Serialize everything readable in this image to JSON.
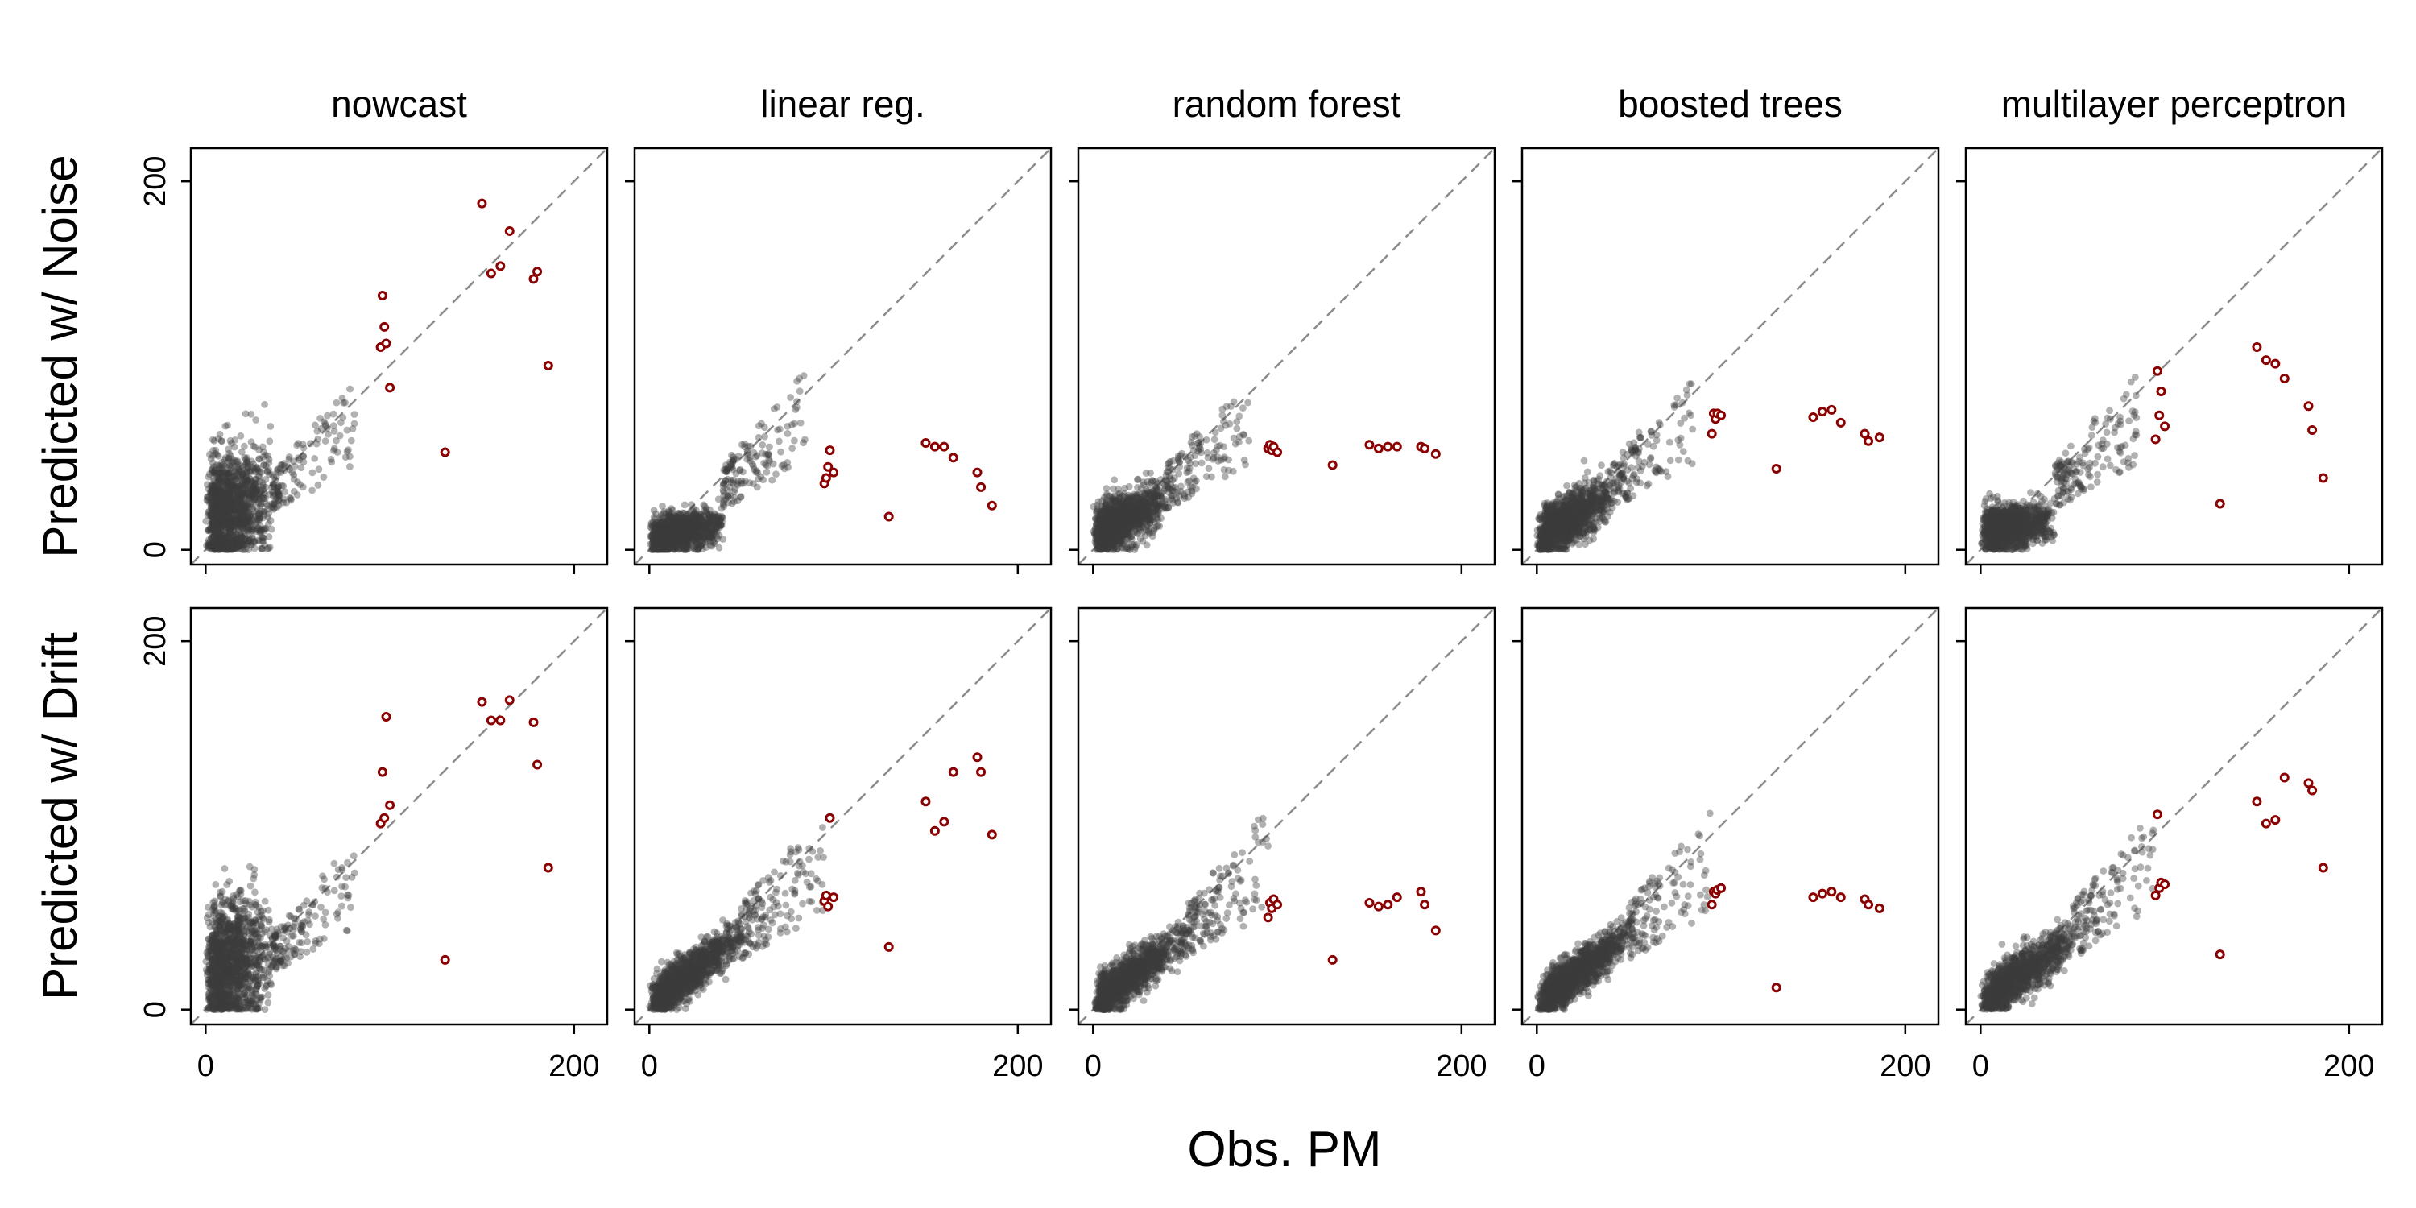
{
  "chart_data": {
    "type": "scatter",
    "xlabel": "Obs. PM",
    "columns": [
      "nowcast",
      "linear reg.",
      "random forest",
      "boosted trees",
      "multilayer perceptron"
    ],
    "rows": [
      "Predicted w/ Noise",
      "Predicted w/ Drift"
    ],
    "xlim": [
      -8,
      218
    ],
    "ylim": [
      -8,
      218
    ],
    "xticks": [
      0,
      200
    ],
    "yticks": [
      0,
      200
    ],
    "reference_line": "y = x",
    "colors": {
      "points": "#3c3c3c",
      "outliers_stroke": "#8b0000",
      "outliers_fill": "#ffffff",
      "reference_line": "#8c8c8c"
    },
    "outlier_obs": [
      95,
      96,
      97,
      98,
      100,
      130,
      150,
      155,
      160,
      165,
      178,
      180,
      186
    ],
    "panels": [
      {
        "row": 0,
        "col": 0,
        "bulk": {
          "xmax": 36,
          "ymin": 0,
          "ymax": 55,
          "slope": 0.3,
          "int": 18,
          "spread": 16
        },
        "outliers": [
          [
            95,
            110
          ],
          [
            96,
            138
          ],
          [
            97,
            121
          ],
          [
            98,
            112
          ],
          [
            100,
            88
          ],
          [
            130,
            53
          ],
          [
            150,
            188
          ],
          [
            155,
            150
          ],
          [
            160,
            154
          ],
          [
            165,
            173
          ],
          [
            178,
            147
          ],
          [
            180,
            151
          ],
          [
            186,
            100
          ]
        ]
      },
      {
        "row": 0,
        "col": 1,
        "bulk": {
          "xmax": 40,
          "ymin": 0,
          "ymax": 22,
          "slope": 0.2,
          "int": 6,
          "spread": 5
        },
        "outliers": [
          [
            95,
            36
          ],
          [
            96,
            39
          ],
          [
            97,
            45
          ],
          [
            98,
            54
          ],
          [
            100,
            42
          ],
          [
            130,
            18
          ],
          [
            150,
            58
          ],
          [
            155,
            56
          ],
          [
            160,
            56
          ],
          [
            165,
            50
          ],
          [
            178,
            42
          ],
          [
            180,
            34
          ],
          [
            186,
            24
          ]
        ]
      },
      {
        "row": 0,
        "col": 2,
        "bulk": {
          "xmax": 40,
          "ymin": 0,
          "ymax": 40,
          "slope": 0.5,
          "int": 8,
          "spread": 7
        },
        "outliers": [
          [
            95,
            55
          ],
          [
            96,
            57
          ],
          [
            97,
            54
          ],
          [
            98,
            56
          ],
          [
            100,
            53
          ],
          [
            130,
            46
          ],
          [
            150,
            57
          ],
          [
            155,
            55
          ],
          [
            160,
            56
          ],
          [
            165,
            56
          ],
          [
            178,
            56
          ],
          [
            180,
            55
          ],
          [
            186,
            52
          ]
        ]
      },
      {
        "row": 0,
        "col": 3,
        "bulk": {
          "xmax": 40,
          "ymin": 0,
          "ymax": 45,
          "slope": 0.6,
          "int": 6,
          "spread": 7
        },
        "outliers": [
          [
            95,
            63
          ],
          [
            96,
            74
          ],
          [
            97,
            71
          ],
          [
            98,
            74
          ],
          [
            100,
            73
          ],
          [
            130,
            44
          ],
          [
            150,
            72
          ],
          [
            155,
            75
          ],
          [
            160,
            76
          ],
          [
            165,
            69
          ],
          [
            178,
            63
          ],
          [
            180,
            59
          ],
          [
            186,
            61
          ]
        ]
      },
      {
        "row": 0,
        "col": 4,
        "bulk": {
          "xmax": 40,
          "ymin": 0,
          "ymax": 32,
          "slope": 0.15,
          "int": 10,
          "spread": 6
        },
        "outliers": [
          [
            95,
            60
          ],
          [
            96,
            97
          ],
          [
            97,
            73
          ],
          [
            98,
            86
          ],
          [
            100,
            67
          ],
          [
            130,
            25
          ],
          [
            150,
            110
          ],
          [
            155,
            103
          ],
          [
            160,
            101
          ],
          [
            165,
            93
          ],
          [
            178,
            78
          ],
          [
            180,
            65
          ],
          [
            186,
            39
          ]
        ]
      },
      {
        "row": 1,
        "col": 0,
        "bulk": {
          "xmax": 36,
          "ymin": 0,
          "ymax": 60,
          "slope": 0.35,
          "int": 20,
          "spread": 17
        },
        "outliers": [
          [
            95,
            101
          ],
          [
            96,
            129
          ],
          [
            97,
            104
          ],
          [
            98,
            159
          ],
          [
            100,
            111
          ],
          [
            130,
            27
          ],
          [
            150,
            167
          ],
          [
            155,
            157
          ],
          [
            160,
            157
          ],
          [
            165,
            168
          ],
          [
            178,
            156
          ],
          [
            180,
            133
          ],
          [
            186,
            77
          ]
        ]
      },
      {
        "row": 1,
        "col": 1,
        "bulk": {
          "xmax": 50,
          "ymin": 0,
          "ymax": 52,
          "slope": 0.75,
          "int": 3,
          "spread": 6
        },
        "outliers": [
          [
            95,
            59
          ],
          [
            96,
            62
          ],
          [
            97,
            56
          ],
          [
            98,
            104
          ],
          [
            100,
            61
          ],
          [
            130,
            34
          ],
          [
            150,
            113
          ],
          [
            155,
            97
          ],
          [
            160,
            102
          ],
          [
            165,
            129
          ],
          [
            178,
            137
          ],
          [
            180,
            129
          ],
          [
            186,
            95
          ]
        ]
      },
      {
        "row": 1,
        "col": 2,
        "bulk": {
          "xmax": 50,
          "ymin": 0,
          "ymax": 52,
          "slope": 0.75,
          "int": 3,
          "spread": 6
        },
        "outliers": [
          [
            95,
            50
          ],
          [
            96,
            58
          ],
          [
            97,
            55
          ],
          [
            98,
            60
          ],
          [
            100,
            57
          ],
          [
            130,
            27
          ],
          [
            150,
            58
          ],
          [
            155,
            56
          ],
          [
            160,
            57
          ],
          [
            165,
            61
          ],
          [
            178,
            64
          ],
          [
            180,
            57
          ],
          [
            186,
            43
          ]
        ]
      },
      {
        "row": 1,
        "col": 3,
        "bulk": {
          "xmax": 50,
          "ymin": 0,
          "ymax": 52,
          "slope": 0.75,
          "int": 3,
          "spread": 6
        },
        "outliers": [
          [
            95,
            57
          ],
          [
            96,
            64
          ],
          [
            97,
            63
          ],
          [
            98,
            65
          ],
          [
            100,
            66
          ],
          [
            130,
            12
          ],
          [
            150,
            61
          ],
          [
            155,
            63
          ],
          [
            160,
            64
          ],
          [
            165,
            61
          ],
          [
            178,
            60
          ],
          [
            180,
            57
          ],
          [
            186,
            55
          ]
        ]
      },
      {
        "row": 1,
        "col": 4,
        "bulk": {
          "xmax": 50,
          "ymin": 0,
          "ymax": 50,
          "slope": 0.7,
          "int": 4,
          "spread": 6
        },
        "outliers": [
          [
            95,
            62
          ],
          [
            96,
            106
          ],
          [
            97,
            66
          ],
          [
            98,
            69
          ],
          [
            100,
            68
          ],
          [
            130,
            30
          ],
          [
            150,
            113
          ],
          [
            155,
            101
          ],
          [
            160,
            103
          ],
          [
            165,
            126
          ],
          [
            178,
            123
          ],
          [
            180,
            119
          ],
          [
            186,
            77
          ]
        ]
      }
    ]
  }
}
